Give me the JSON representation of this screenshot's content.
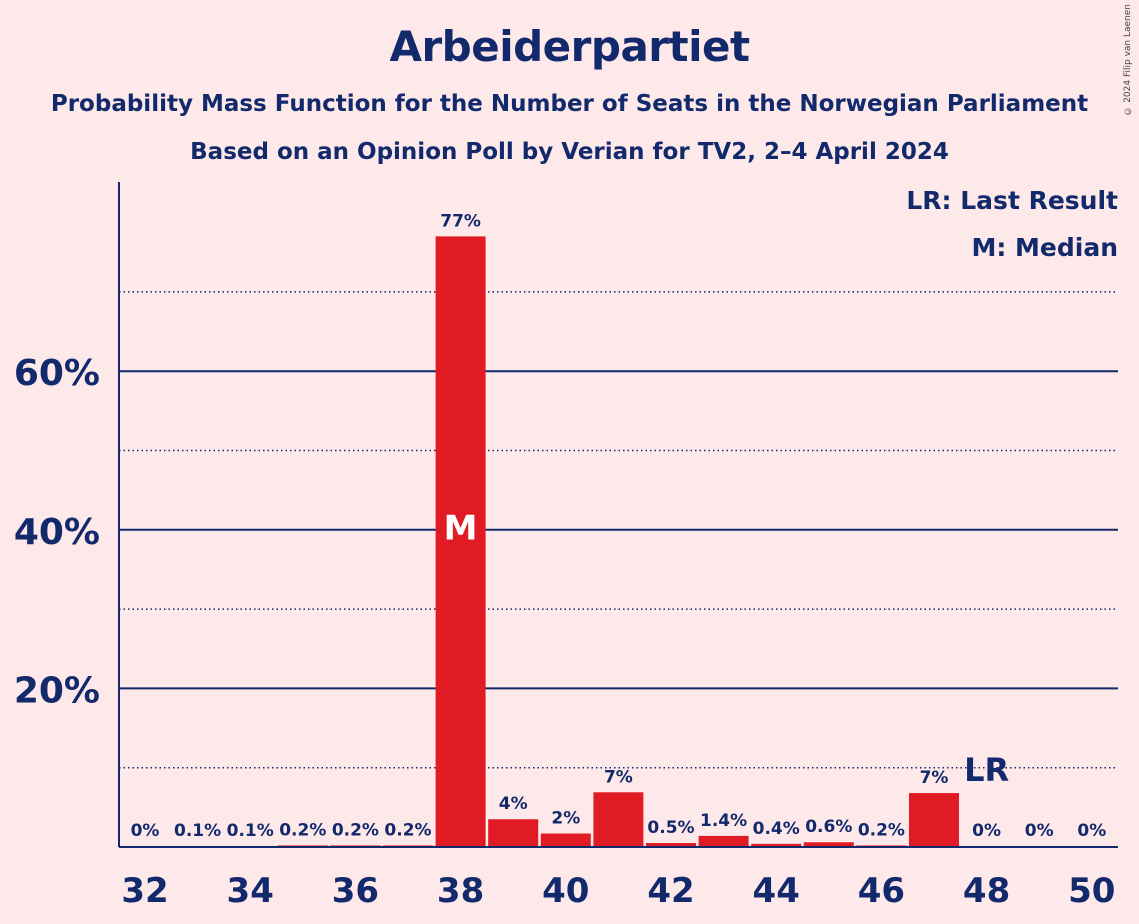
{
  "header": {
    "title": "Arbeiderpartiet",
    "subtitle_1": "Probability Mass Function for the Number of Seats in the Norwegian Parliament",
    "subtitle_2": "Based on an Opinion Poll by Verian for TV2, 2–4 April 2024",
    "copyright": "© 2024 Filip van Laenen"
  },
  "legend": {
    "last_result": "LR: Last Result",
    "median": "M: Median"
  },
  "colors": {
    "background": "#FDE8EA",
    "bar": "#E11B24",
    "text": "#12296B"
  },
  "chart_data": {
    "type": "bar",
    "x": [
      32,
      33,
      34,
      35,
      36,
      37,
      38,
      39,
      40,
      41,
      42,
      43,
      44,
      45,
      46,
      47,
      48,
      49,
      50
    ],
    "values": [
      0,
      0.1,
      0.1,
      0.2,
      0.2,
      0.2,
      77,
      3.5,
      1.7,
      6.9,
      0.5,
      1.4,
      0.4,
      0.6,
      0.2,
      6.8,
      0,
      0,
      0
    ],
    "value_labels": [
      "0%",
      "0.1%",
      "0.1%",
      "0.2%",
      "0.2%",
      "0.2%",
      "77%",
      "4%",
      "2%",
      "7%",
      "0.5%",
      "1.4%",
      "0.4%",
      "0.6%",
      "0.2%",
      "7%",
      "0%",
      "0%",
      "0%"
    ],
    "x_tick_labels": [
      "32",
      "34",
      "36",
      "38",
      "40",
      "42",
      "44",
      "46",
      "48",
      "50"
    ],
    "y_tick_labels": [
      "20%",
      "40%",
      "60%"
    ],
    "y_ticks": [
      20,
      40,
      60
    ],
    "y_minor_ticks": [
      10,
      30,
      50,
      70
    ],
    "ylim": [
      0,
      84
    ],
    "median_seat": 38,
    "median_label": "M",
    "last_result_seat": 48,
    "last_result_label": "LR",
    "legend_placement": "top-right"
  }
}
